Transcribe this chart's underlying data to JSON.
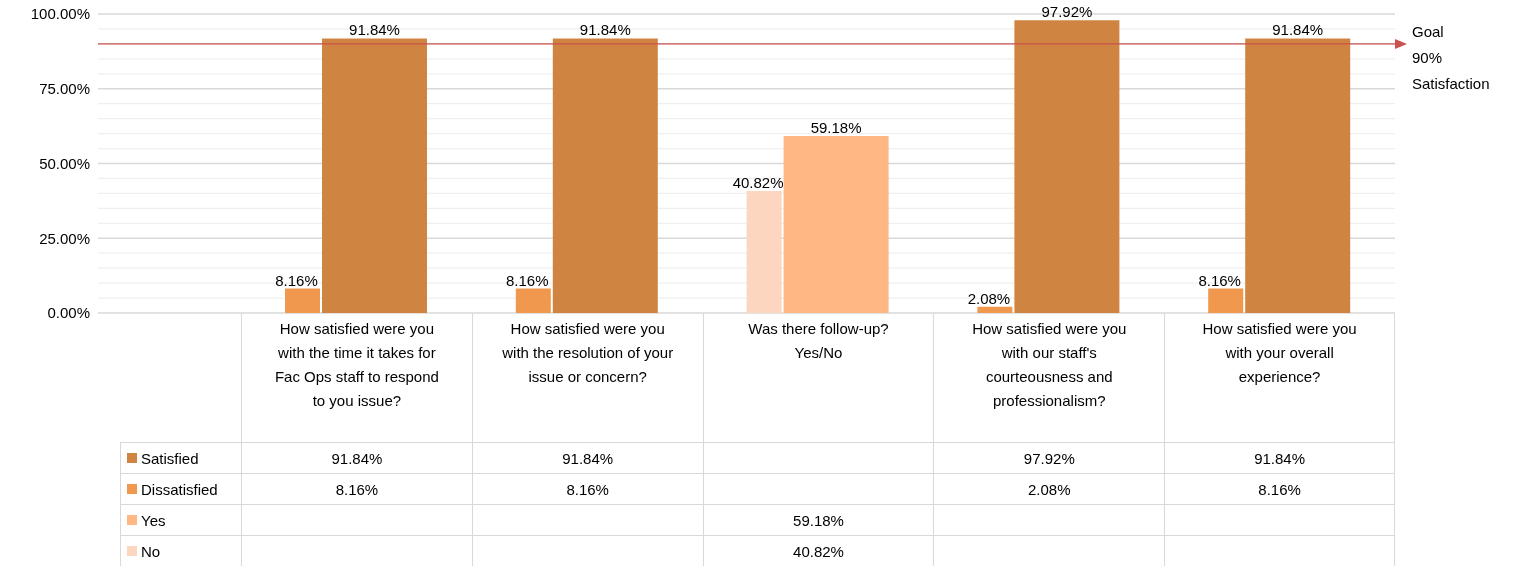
{
  "chart_data": {
    "type": "bar",
    "categories": [
      "How satisfied were you with the time it takes for Fac Ops staff to respond to you issue?",
      "How satisfied were you with the resolution of your issue or concern?",
      "Was there follow-up? Yes/No",
      "How satisfied were you with our staff's courteousness and professionalism?",
      "How satisfied were you with your overall experience?"
    ],
    "series": [
      {
        "name": "Satisfied",
        "color": "#d08442",
        "values": [
          91.84,
          91.84,
          null,
          97.92,
          91.84
        ],
        "value_labels": [
          "91.84%",
          "91.84%",
          null,
          "97.92%",
          "91.84%"
        ]
      },
      {
        "name": "Dissatisfied",
        "color": "#f0994e",
        "values": [
          8.16,
          8.16,
          null,
          2.08,
          8.16
        ],
        "value_labels": [
          "8.16%",
          "8.16%",
          null,
          "2.08%",
          "8.16%"
        ]
      },
      {
        "name": "Yes",
        "color": "#ffb884",
        "values": [
          null,
          null,
          59.18,
          null,
          null
        ],
        "value_labels": [
          null,
          null,
          "59.18%",
          null,
          null
        ]
      },
      {
        "name": "No",
        "color": "#fdd6c0",
        "values": [
          null,
          null,
          40.82,
          null,
          null
        ],
        "value_labels": [
          null,
          null,
          "40.82%",
          null,
          null
        ]
      }
    ],
    "ylim": [
      0,
      100
    ],
    "yticks": [
      {
        "value": 0,
        "label": "0.00%"
      },
      {
        "value": 5,
        "label": null
      },
      {
        "value": 10,
        "label": null
      },
      {
        "value": 15,
        "label": null
      },
      {
        "value": 20,
        "label": null
      },
      {
        "value": 25,
        "label": "25.00%"
      },
      {
        "value": 30,
        "label": null
      },
      {
        "value": 35,
        "label": null
      },
      {
        "value": 40,
        "label": null
      },
      {
        "value": 45,
        "label": null
      },
      {
        "value": 50,
        "label": "50.00%"
      },
      {
        "value": 55,
        "label": null
      },
      {
        "value": 60,
        "label": null
      },
      {
        "value": 65,
        "label": null
      },
      {
        "value": 70,
        "label": null
      },
      {
        "value": 75,
        "label": "75.00%"
      },
      {
        "value": 80,
        "label": null
      },
      {
        "value": 85,
        "label": null
      },
      {
        "value": 90,
        "label": null
      },
      {
        "value": 95,
        "label": null
      },
      {
        "value": 100,
        "label": "100.00%"
      }
    ],
    "grid": "y",
    "legend": "bottom",
    "ref_lines": [
      {
        "axis": "y",
        "value": 90,
        "label": "Goal 90% Satisfaction",
        "color": "#c9514e"
      }
    ]
  }
}
